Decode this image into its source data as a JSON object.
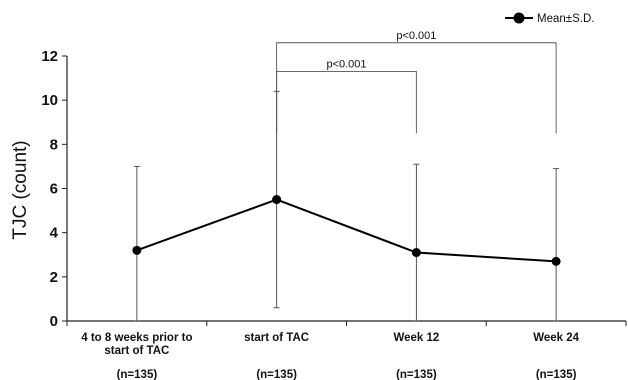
{
  "chart_data": {
    "type": "line",
    "title": "",
    "ylabel": "TJC (count)",
    "xlabel": "",
    "ylim": [
      0,
      12
    ],
    "yticks": [
      "0",
      "2",
      "4",
      "6",
      "8",
      "10",
      "12"
    ],
    "categories": [
      [
        "4 to 8 weeks prior to",
        "start of TAC"
      ],
      [
        "start of TAC"
      ],
      [
        "Week 12"
      ],
      [
        "Week 24"
      ]
    ],
    "n_labels": [
      "(n=135)",
      "(n=135)",
      "(n=135)",
      "(n=135)"
    ],
    "series": [
      {
        "name": "Mean±S.D.",
        "values": [
          3.2,
          5.5,
          3.1,
          2.7
        ],
        "err_low": [
          0.0,
          0.6,
          0.0,
          0.0
        ],
        "err_high": [
          7.0,
          10.4,
          7.1,
          6.9
        ]
      }
    ],
    "annotations": [
      {
        "from": 1,
        "to": 3,
        "text": "p<0.001",
        "level": 12.6,
        "drop_to": 8.5
      },
      {
        "from": 1,
        "to": 2,
        "text": "p<0.001",
        "level": 11.3,
        "drop_to": 8.5
      }
    ],
    "legend": "top-right"
  }
}
